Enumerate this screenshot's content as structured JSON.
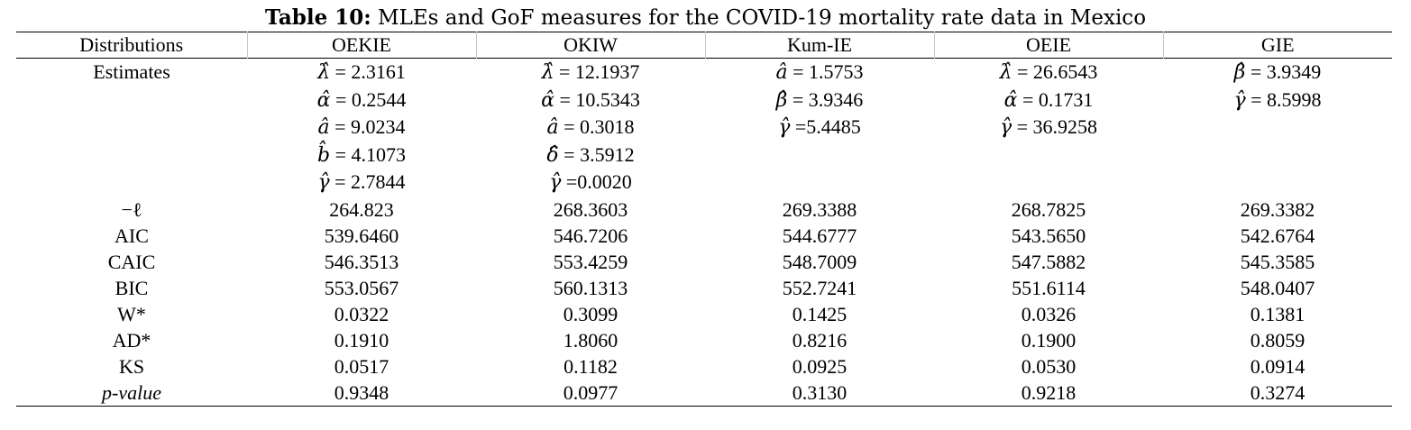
{
  "caption": {
    "label": "Table 10:",
    "text": "MLEs and GoF measures for the COVID-19 mortality rate data in Mexico"
  },
  "table": {
    "headers": [
      "Distributions",
      "OEKIE",
      "OKIW",
      "Kum-IE",
      "OEIE",
      "GIE"
    ],
    "estimates_label": "Estimates",
    "estimates": [
      [
        {
          "sym": "λ̂",
          "text": " = 2.3161"
        },
        {
          "sym": "α̂",
          "text": " = 0.2544"
        },
        {
          "sym": "â",
          "text": " = 9.0234"
        },
        {
          "sym": "b̂",
          "text": " = 4.1073"
        },
        {
          "sym": "γ̂",
          "text": " = 2.7844"
        }
      ],
      [
        {
          "sym": "λ̂",
          "text": " = 12.1937"
        },
        {
          "sym": "α̂",
          "text": " = 10.5343"
        },
        {
          "sym": "â",
          "text": " = 0.3018"
        },
        {
          "sym": "δ̂",
          "text": " = 3.5912"
        },
        {
          "sym": "γ̂",
          "text": " =0.0020"
        }
      ],
      [
        {
          "sym": "â",
          "text": " = 1.5753"
        },
        {
          "sym": "β̂",
          "text": " = 3.9346"
        },
        {
          "sym": "γ̂",
          "text": " =5.4485"
        }
      ],
      [
        {
          "sym": "λ̂",
          "text": " = 26.6543"
        },
        {
          "sym": "α̂",
          "text": " = 0.1731"
        },
        {
          "sym": "γ̂",
          "text": " = 36.9258"
        }
      ],
      [
        {
          "sym": "β̂",
          "text": " = 3.9349"
        },
        {
          "sym": "γ̂",
          "text": " = 8.5998"
        }
      ]
    ],
    "rows": [
      {
        "label": "−ℓ",
        "italic": false,
        "values": [
          "264.823",
          "268.3603",
          "269.3388",
          "268.7825",
          "269.3382"
        ]
      },
      {
        "label": "AIC",
        "italic": false,
        "values": [
          "539.6460",
          "546.7206",
          "544.6777",
          "543.5650",
          "542.6764"
        ]
      },
      {
        "label": "CAIC",
        "italic": false,
        "values": [
          "546.3513",
          "553.4259",
          "548.7009",
          "547.5882",
          "545.3585"
        ]
      },
      {
        "label": "BIC",
        "italic": false,
        "values": [
          "553.0567",
          "560.1313",
          "552.7241",
          "551.6114",
          "548.0407"
        ]
      },
      {
        "label": "W*",
        "italic": false,
        "values": [
          "0.0322",
          "0.3099",
          "0.1425",
          "0.0326",
          "0.1381"
        ]
      },
      {
        "label": "AD*",
        "italic": false,
        "values": [
          "0.1910",
          "1.8060",
          "0.8216",
          "0.1900",
          "0.8059"
        ]
      },
      {
        "label": "KS",
        "italic": false,
        "values": [
          "0.0517",
          "0.1182",
          "0.0925",
          "0.0530",
          "0.0914"
        ]
      },
      {
        "label": "p-value",
        "italic": true,
        "values": [
          "0.9348",
          "0.0977",
          "0.3130",
          "0.9218",
          "0.3274"
        ]
      }
    ]
  }
}
